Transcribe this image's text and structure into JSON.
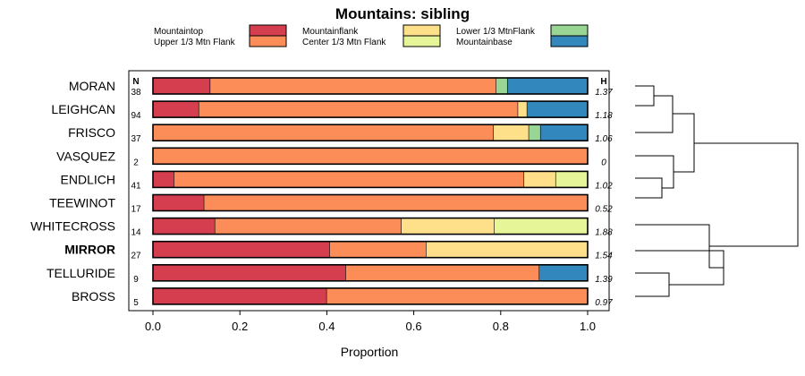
{
  "colors": {
    "Mountaintop": "#d53e4f",
    "Upper 1/3 Mtn Flank": "#fc8d59",
    "Mountainflank": "#fee08b",
    "Center 1/3 Mtn Flank": "#e6f598",
    "Lower 1/3 MtnFlank": "#99d594",
    "Mountainbase": "#3288bd"
  },
  "chart_data": {
    "type": "bar",
    "stacked": true,
    "orientation": "horizontal",
    "title": "Mountains: sibling",
    "xlabel": "Proportion",
    "ylabel": "",
    "xlim": [
      0,
      1
    ],
    "xticks": [
      "0.0",
      "0.2",
      "0.4",
      "0.6",
      "0.8",
      "1.0"
    ],
    "n_header": "N",
    "h_header": "H",
    "legend_position": "top",
    "legend": [
      "Mountaintop",
      "Upper 1/3 Mtn Flank",
      "Mountainflank",
      "Center 1/3 Mtn Flank",
      "Lower 1/3 MtnFlank",
      "Mountainbase"
    ],
    "rows": [
      {
        "label": "MORAN",
        "n": "38",
        "h": "1.37",
        "bold": false,
        "segments": [
          [
            "Mountaintop",
            0.132
          ],
          [
            "Upper 1/3 Mtn Flank",
            0.658
          ],
          [
            "Lower 1/3 MtnFlank",
            0.026
          ],
          [
            "Mountainbase",
            0.184
          ]
        ]
      },
      {
        "label": "LEIGHCAN",
        "n": "94",
        "h": "1.18",
        "bold": false,
        "segments": [
          [
            "Mountaintop",
            0.106
          ],
          [
            "Upper 1/3 Mtn Flank",
            0.734
          ],
          [
            "Mountainflank",
            0.021
          ],
          [
            "Mountainbase",
            0.139
          ]
        ]
      },
      {
        "label": "FRISCO",
        "n": "37",
        "h": "1.06",
        "bold": false,
        "segments": [
          [
            "Upper 1/3 Mtn Flank",
            0.784
          ],
          [
            "Mountainflank",
            0.081
          ],
          [
            "Lower 1/3 MtnFlank",
            0.027
          ],
          [
            "Mountainbase",
            0.108
          ]
        ]
      },
      {
        "label": "VASQUEZ",
        "n": "2",
        "h": "0",
        "bold": false,
        "segments": [
          [
            "Upper 1/3 Mtn Flank",
            1.0
          ]
        ]
      },
      {
        "label": "ENDLICH",
        "n": "41",
        "h": "1.02",
        "bold": false,
        "segments": [
          [
            "Mountaintop",
            0.049
          ],
          [
            "Upper 1/3 Mtn Flank",
            0.805
          ],
          [
            "Mountainflank",
            0.073
          ],
          [
            "Center 1/3 Mtn Flank",
            0.073
          ]
        ]
      },
      {
        "label": "TEEWINOT",
        "n": "17",
        "h": "0.52",
        "bold": false,
        "segments": [
          [
            "Mountaintop",
            0.118
          ],
          [
            "Upper 1/3 Mtn Flank",
            0.882
          ]
        ]
      },
      {
        "label": "WHITECROSS",
        "n": "14",
        "h": "1.88",
        "bold": false,
        "segments": [
          [
            "Mountaintop",
            0.143
          ],
          [
            "Upper 1/3 Mtn Flank",
            0.429
          ],
          [
            "Mountainflank",
            0.214
          ],
          [
            "Center 1/3 Mtn Flank",
            0.214
          ]
        ]
      },
      {
        "label": "MIRROR",
        "n": "27",
        "h": "1.54",
        "bold": true,
        "segments": [
          [
            "Mountaintop",
            0.407
          ],
          [
            "Upper 1/3 Mtn Flank",
            0.222
          ],
          [
            "Mountainflank",
            0.371
          ]
        ]
      },
      {
        "label": "TELLURIDE",
        "n": "9",
        "h": "1.39",
        "bold": false,
        "segments": [
          [
            "Mountaintop",
            0.444
          ],
          [
            "Upper 1/3 Mtn Flank",
            0.445
          ],
          [
            "Mountainbase",
            0.111
          ]
        ]
      },
      {
        "label": "BROSS",
        "n": "5",
        "h": "0.97",
        "bold": false,
        "segments": [
          [
            "Mountaintop",
            0.4
          ],
          [
            "Upper 1/3 Mtn Flank",
            0.6
          ]
        ]
      }
    ]
  }
}
